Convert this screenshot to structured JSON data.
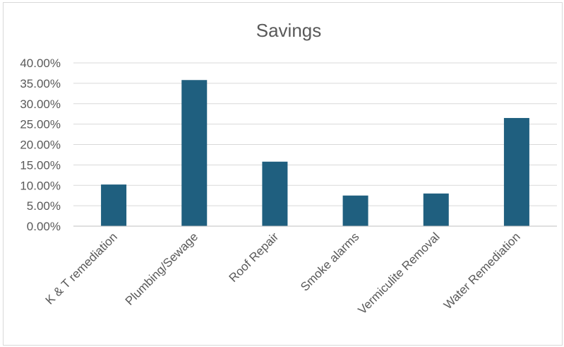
{
  "chart_data": {
    "type": "bar",
    "title": "Savings",
    "categories": [
      "K & T remediation",
      "Plumbing/Sewage",
      "Roof Repair",
      "Smoke alarms",
      "Vermiculite Removal",
      "Water Remediation"
    ],
    "values": [
      0.102,
      0.358,
      0.158,
      0.075,
      0.08,
      0.265
    ],
    "ylim": [
      0,
      0.4
    ],
    "yticks": [
      "0.00%",
      "5.00%",
      "10.00%",
      "15.00%",
      "20.00%",
      "25.00%",
      "30.00%",
      "35.00%",
      "40.00%"
    ],
    "bar_color": "#1f5f7f",
    "grid": true,
    "legend": "none"
  }
}
